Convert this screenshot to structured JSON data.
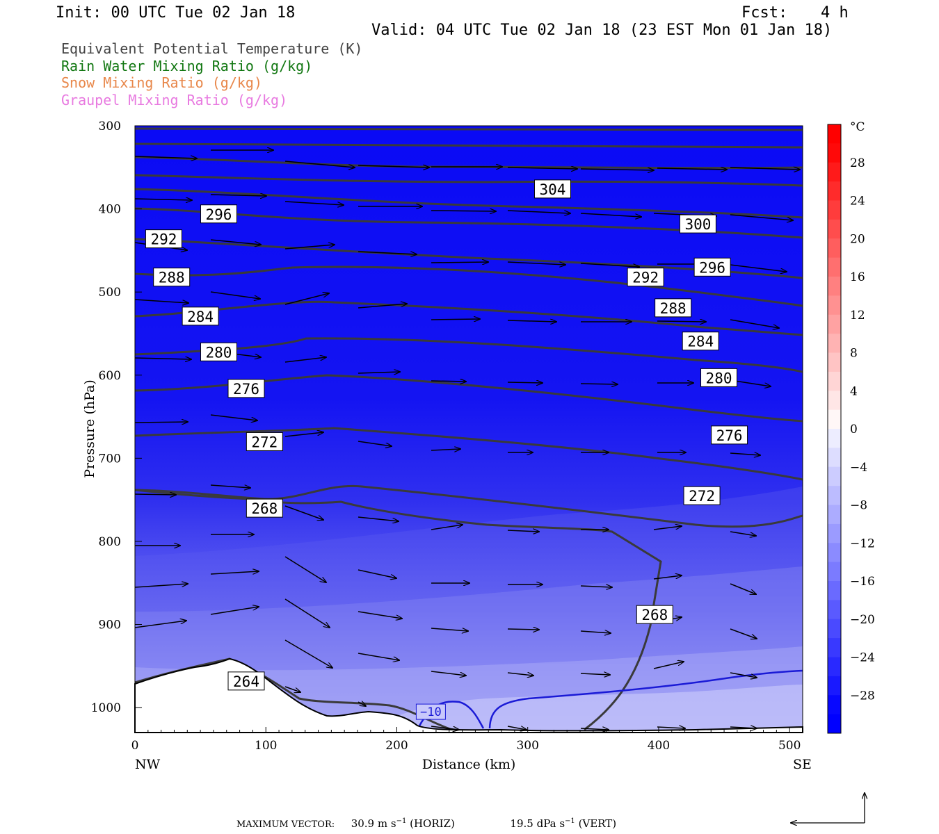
{
  "header": {
    "init": "Init: 00 UTC Tue 02 Jan 18",
    "fcst_label": "Fcst:",
    "fcst_value": "4 h",
    "valid": "Valid: 04 UTC Tue 02 Jan 18 (23 EST Mon 01 Jan 18)"
  },
  "fields": [
    {
      "label": "Equivalent Potential Temperature (K)",
      "color": "#444444"
    },
    {
      "label": "Rain Water Mixing Ratio (g/kg)",
      "color": "#117711"
    },
    {
      "label": "Snow Mixing Ratio (g/kg)",
      "color": "#e8874a"
    },
    {
      "label": "Graupel Mixing Ratio (g/kg)",
      "color": "#e87ae0"
    }
  ],
  "chart_data": {
    "type": "cross-section",
    "xlabel": "Distance (km)",
    "ylabel": "Pressure (hPa)",
    "x_range": [
      0,
      510
    ],
    "y_range": [
      1030,
      300
    ],
    "x_ticks": [
      0,
      100,
      200,
      300,
      400,
      500
    ],
    "y_ticks": [
      300,
      400,
      500,
      600,
      700,
      800,
      900,
      1000
    ],
    "left_end_label": "NW",
    "right_end_label": "SE",
    "colorbar": {
      "unit": "°C",
      "labels": [
        "28",
        "24",
        "20",
        "16",
        "12",
        "8",
        "4",
        "0",
        "−4",
        "−8",
        "−12",
        "−16",
        "−20",
        "−24",
        "−28"
      ],
      "label_values": [
        28,
        24,
        20,
        16,
        12,
        8,
        4,
        0,
        -4,
        -8,
        -12,
        -16,
        -20,
        -24,
        -28
      ],
      "min": -32,
      "max": 32
    },
    "theta_e_labels": [
      {
        "x": 319,
        "p": 376,
        "text": "304"
      },
      {
        "x": 64,
        "p": 406,
        "text": "296"
      },
      {
        "x": 430,
        "p": 418,
        "text": "300"
      },
      {
        "x": 22,
        "p": 436,
        "text": "292"
      },
      {
        "x": 441,
        "p": 470,
        "text": "296"
      },
      {
        "x": 28,
        "p": 482,
        "text": "288"
      },
      {
        "x": 390,
        "p": 482,
        "text": "292"
      },
      {
        "x": 411,
        "p": 519,
        "text": "288"
      },
      {
        "x": 50,
        "p": 529,
        "text": "284"
      },
      {
        "x": 432,
        "p": 559,
        "text": "284"
      },
      {
        "x": 64,
        "p": 572,
        "text": "280"
      },
      {
        "x": 446,
        "p": 603,
        "text": "280"
      },
      {
        "x": 85,
        "p": 616,
        "text": "276"
      },
      {
        "x": 454,
        "p": 672,
        "text": "276"
      },
      {
        "x": 99,
        "p": 680,
        "text": "272"
      },
      {
        "x": 433,
        "p": 745,
        "text": "272"
      },
      {
        "x": 99,
        "p": 760,
        "text": "268"
      },
      {
        "x": 397,
        "p": 888,
        "text": "268"
      },
      {
        "x": 85,
        "p": 968,
        "text": "264"
      }
    ],
    "temperature_contour_label": {
      "x": 226,
      "p": 1005,
      "text": "−10"
    },
    "max_vector": {
      "label": "MAXIMUM VECTOR:",
      "horiz_value": "30.9",
      "horiz_unit": "m s",
      "horiz_exp": "−1",
      "horiz_tag": "(HORIZ)",
      "vert_value": "19.5",
      "vert_unit": "dPa s",
      "vert_exp": "−1",
      "vert_tag": "(VERT)"
    }
  },
  "colors": {
    "theta_e_line": "#3a3a3a",
    "temperature_line": "#1a1ad6",
    "blue_dark": "#0000ff",
    "blue_light": "#c8c8ff"
  }
}
